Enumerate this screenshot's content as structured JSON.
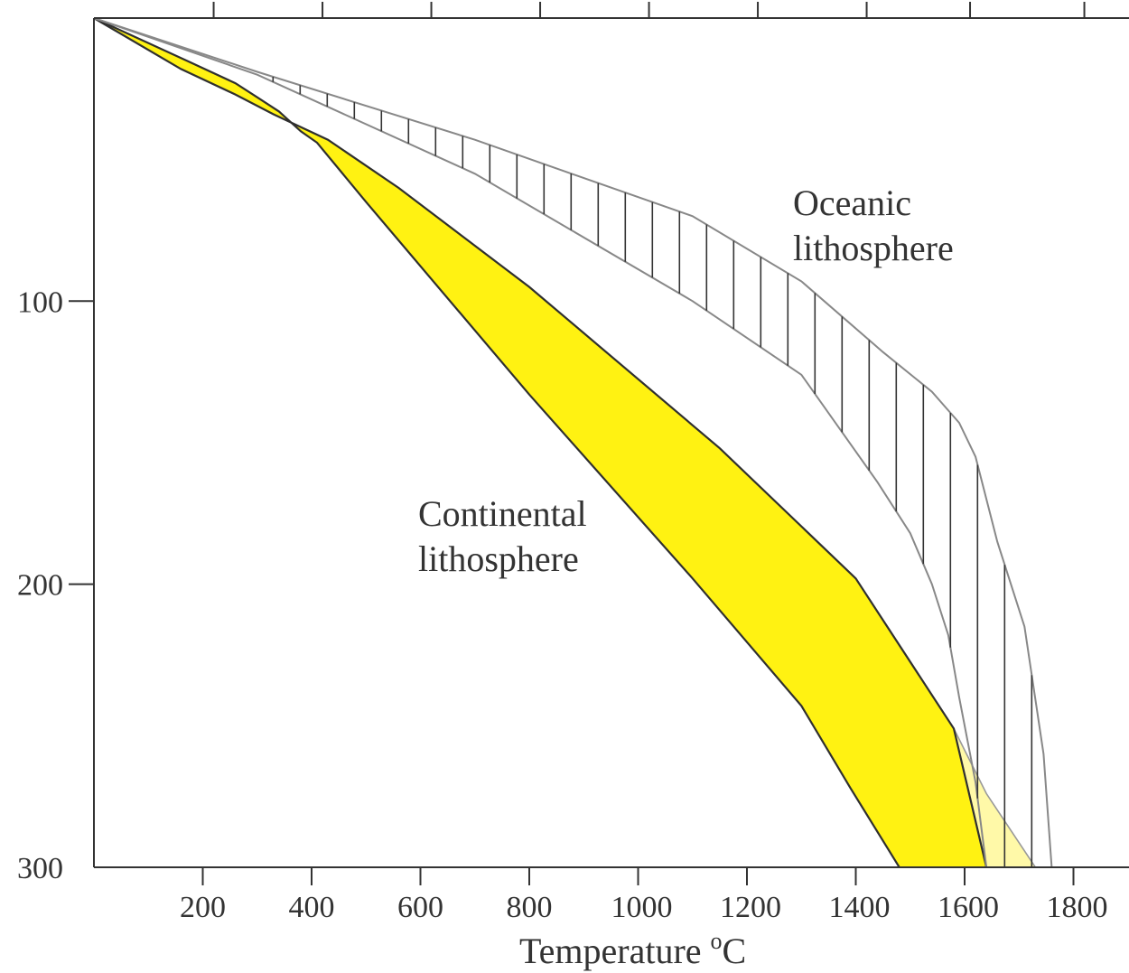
{
  "chart_data": {
    "type": "area",
    "title": "",
    "xlabel": "Temperature",
    "xlabel_unit_sup": "o",
    "xlabel_unit": "C",
    "ylabel": "",
    "xlim": [
      0,
      1900
    ],
    "ylim": [
      0,
      300
    ],
    "x_ticks": [
      200,
      400,
      600,
      800,
      1000,
      1200,
      1400,
      1600,
      1800
    ],
    "x_tick_labels": [
      "200",
      "400",
      "600",
      "800",
      "1000",
      "1200",
      "1400",
      "1600",
      "1800"
    ],
    "y_ticks": [
      100,
      200,
      300
    ],
    "y_tick_labels": [
      "100",
      "200",
      "300"
    ],
    "top_ticks": [
      220,
      420,
      620,
      820,
      1020,
      1220,
      1420,
      1610,
      1820
    ],
    "grid": false,
    "series": [
      {
        "name": "Continental lithosphere",
        "fill": "#FFF212",
        "upper": {
          "x": [
            0,
            160,
            260,
            330,
            430,
            560,
            800,
            1150,
            1400,
            1580,
            1640
          ],
          "y": [
            0,
            18,
            27,
            34,
            43,
            60,
            95,
            152,
            198,
            251,
            300
          ]
        },
        "lower": {
          "x": [
            0,
            170,
            260,
            300,
            340,
            380,
            410,
            500,
            800,
            1100,
            1300,
            1390,
            1480
          ],
          "y": [
            0,
            15,
            23,
            28,
            33,
            40,
            44,
            65,
            133,
            198,
            243,
            272,
            300
          ]
        },
        "extension": {
          "x": [
            1580,
            1640,
            1730,
            1700,
            1640
          ],
          "y": [
            251,
            274,
            300,
            300,
            300
          ],
          "fill": "#FFF9A8"
        }
      },
      {
        "name": "Oceanic lithosphere",
        "pattern": "vertical-hatch",
        "upper": {
          "x": [
            0,
            300,
            700,
            1100,
            1300,
            1450,
            1540,
            1590,
            1620,
            1660,
            1710,
            1745,
            1760
          ],
          "y": [
            0,
            19,
            43,
            70,
            93,
            118,
            132,
            143,
            155,
            185,
            215,
            260,
            300
          ]
        },
        "lower": {
          "x": [
            0,
            300,
            700,
            1100,
            1300,
            1440,
            1500,
            1540,
            1570,
            1590,
            1620,
            1640
          ],
          "y": [
            0,
            20,
            55,
            100,
            126,
            164,
            182,
            200,
            218,
            240,
            270,
            300
          ]
        }
      }
    ]
  }
}
